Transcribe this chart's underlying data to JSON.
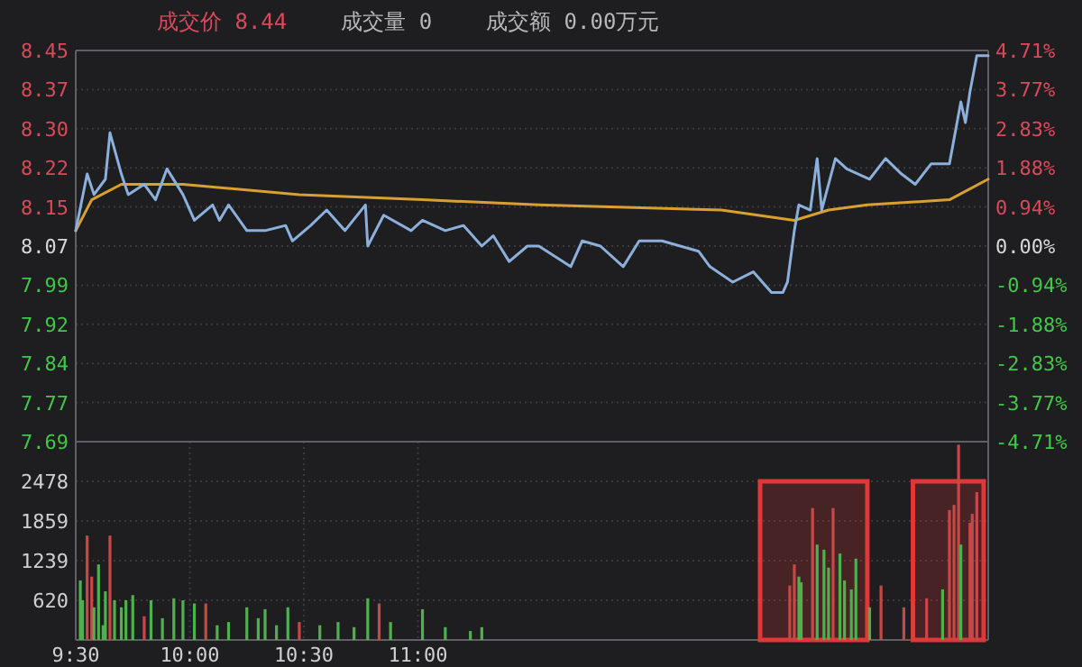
{
  "chart_data": [
    {
      "type": "line",
      "annotations": [
        "成交价 8.44",
        "成交量 0",
        "成交额 0.00万元"
      ],
      "xlim": [
        9.5,
        13.5
      ],
      "ylim": [
        7.69,
        8.45
      ],
      "yticks": [
        {
          "value": 7.69,
          "label": "7.69"
        },
        {
          "value": 7.766,
          "label": "7.77"
        },
        {
          "value": 7.842,
          "label": "7.84"
        },
        {
          "value": 7.918,
          "label": "7.92"
        },
        {
          "value": 7.994,
          "label": "7.99"
        },
        {
          "value": 8.07,
          "label": "8.07"
        },
        {
          "value": 8.146,
          "label": "8.15"
        },
        {
          "value": 8.222,
          "label": "8.22"
        },
        {
          "value": 8.298,
          "label": "8.30"
        },
        {
          "value": 8.374,
          "label": "8.37"
        },
        {
          "value": 8.45,
          "label": "8.45"
        }
      ],
      "y2lim": [
        -4.71,
        4.71
      ],
      "y2ticks": [
        {
          "value": -4.71,
          "label": "-4.71%"
        },
        {
          "value": -3.768,
          "label": "-3.77%"
        },
        {
          "value": -2.826,
          "label": "-2.83%"
        },
        {
          "value": -1.884,
          "label": "-1.88%"
        },
        {
          "value": -0.942,
          "label": "-0.94%"
        },
        {
          "value": 0,
          "label": "0.00%"
        },
        {
          "value": 0.942,
          "label": "0.94%"
        },
        {
          "value": 1.884,
          "label": "1.88%"
        },
        {
          "value": 2.826,
          "label": "2.83%"
        },
        {
          "value": 3.768,
          "label": "3.77%"
        },
        {
          "value": 4.71,
          "label": "4.71%"
        }
      ],
      "grid": true,
      "tick_labels": "y",
      "series": [
        {
          "color": "#d9a030",
          "x": [
            9.5,
            9.57,
            9.7,
            9.97,
            10.48,
            11.02,
            11.53,
            12.33,
            12.65,
            12.8,
            12.97,
            13.33,
            13.5
          ],
          "values": [
            8.1,
            8.16,
            8.19,
            8.19,
            8.17,
            8.16,
            8.15,
            8.14,
            8.12,
            8.14,
            8.15,
            8.16,
            8.2
          ]
        },
        {
          "color": "#8cb0dc",
          "x": [
            9.5,
            9.55,
            9.58,
            9.63,
            9.65,
            9.7,
            9.73,
            9.8,
            9.85,
            9.9,
            9.97,
            10.02,
            10.1,
            10.13,
            10.17,
            10.25,
            10.33,
            10.42,
            10.45,
            10.53,
            10.6,
            10.68,
            10.77,
            10.78,
            10.85,
            10.97,
            11.02,
            11.12,
            11.2,
            11.28,
            11.33,
            11.4,
            11.48,
            11.53,
            11.67,
            11.72,
            11.8,
            11.9,
            11.97,
            12.07,
            12.15,
            12.23,
            12.28,
            12.38,
            12.47,
            12.55,
            12.6,
            12.62,
            12.65,
            12.67,
            12.72,
            12.75,
            12.77,
            12.83,
            12.88,
            12.98,
            13.05,
            13.12,
            13.18,
            13.25,
            13.33,
            13.38,
            13.4,
            13.42,
            13.45,
            13.5
          ],
          "values": [
            8.1,
            8.21,
            8.17,
            8.2,
            8.29,
            8.21,
            8.17,
            8.19,
            8.16,
            8.22,
            8.17,
            8.12,
            8.15,
            8.12,
            8.15,
            8.1,
            8.1,
            8.11,
            8.08,
            8.11,
            8.14,
            8.1,
            8.15,
            8.07,
            8.13,
            8.1,
            8.12,
            8.1,
            8.11,
            8.07,
            8.09,
            8.04,
            8.07,
            8.07,
            8.03,
            8.08,
            8.07,
            8.03,
            8.08,
            8.08,
            8.07,
            8.06,
            8.03,
            8.0,
            8.02,
            7.98,
            7.98,
            8.0,
            8.1,
            8.15,
            8.14,
            8.24,
            8.14,
            8.24,
            8.22,
            8.2,
            8.24,
            8.21,
            8.19,
            8.23,
            8.23,
            8.35,
            8.31,
            8.37,
            8.44,
            8.44
          ]
        }
      ]
    },
    {
      "type": "bar",
      "xlim": [
        9.5,
        13.5
      ],
      "ylim": [
        0,
        3098
      ],
      "yticks": [
        620,
        1239,
        1859,
        2478
      ],
      "xticks": [
        {
          "value": 9.5,
          "label": "9:30"
        },
        {
          "value": 10,
          "label": "10:00"
        },
        {
          "value": 10.5,
          "label": "10:30"
        },
        {
          "value": 11,
          "label": "11:00"
        }
      ],
      "grid": true,
      "bands": [
        {
          "axis": "x",
          "from": 12.5,
          "to": 12.97,
          "color": "#e03838"
        },
        {
          "axis": "x",
          "from": 13.17,
          "to": 13.48,
          "color": "#e03838"
        }
      ],
      "series": [
        {
          "x": [
            9.52,
            9.53,
            9.55,
            9.57,
            9.58,
            9.6,
            9.62,
            9.63,
            9.65,
            9.67,
            9.7,
            9.72,
            9.75,
            9.8,
            9.83,
            9.88,
            9.93,
            9.97,
            10.02,
            10.07,
            10.12,
            10.17,
            10.25,
            10.3,
            10.33,
            10.38,
            10.43,
            10.48,
            10.57,
            10.65,
            10.72,
            10.78,
            10.83,
            10.88,
            11.02,
            11.12,
            11.23,
            11.28,
            12.63,
            12.65,
            12.67,
            12.68,
            12.73,
            12.75,
            12.78,
            12.8,
            12.82,
            12.85,
            12.87,
            12.9,
            12.92,
            12.98,
            13.03,
            13.13,
            13.17,
            13.23,
            13.3,
            13.33,
            13.35,
            13.37,
            13.38,
            13.42,
            13.43,
            13.45
          ],
          "values": [
            930,
            620,
            1630,
            990,
            510,
            1180,
            230,
            760,
            1630,
            620,
            510,
            620,
            700,
            370,
            620,
            340,
            650,
            620,
            570,
            570,
            230,
            280,
            510,
            340,
            480,
            230,
            510,
            280,
            230,
            280,
            200,
            650,
            570,
            280,
            480,
            200,
            140,
            200,
            850,
            1180,
            990,
            900,
            2060,
            1490,
            1410,
            1130,
            2060,
            1350,
            930,
            790,
            1270,
            510,
            850,
            510,
            570,
            650,
            790,
            2030,
            2110,
            3050,
            1490,
            1830,
            1970,
            2310
          ],
          "colors": [
            "#50b050",
            "#50b050",
            "#c84848",
            "#c84848",
            "#50b050",
            "#50b050",
            "#50b050",
            "#50b050",
            "#c84848",
            "#50b050",
            "#50b050",
            "#50b050",
            "#50b050",
            "#c84848",
            "#50b050",
            "#50b050",
            "#50b050",
            "#50b050",
            "#50b050",
            "#c84848",
            "#50b050",
            "#50b050",
            "#50b050",
            "#50b050",
            "#50b050",
            "#50b050",
            "#50b050",
            "#c84848",
            "#50b050",
            "#50b050",
            "#50b050",
            "#50b050",
            "#c84848",
            "#50b050",
            "#50b050",
            "#50b050",
            "#50b050",
            "#50b050",
            "#c84848",
            "#c84848",
            "#50b050",
            "#50b050",
            "#c84848",
            "#50b050",
            "#50b050",
            "#50b050",
            "#c84848",
            "#50b050",
            "#50b050",
            "#50b050",
            "#50b050",
            "#50b050",
            "#c84848",
            "#c84848",
            "#c84848",
            "#c84848",
            "#50b050",
            "#c84848",
            "#c84848",
            "#c84848",
            "#50b050",
            "#c84848",
            "#c84848",
            "#c84848"
          ]
        }
      ]
    }
  ]
}
